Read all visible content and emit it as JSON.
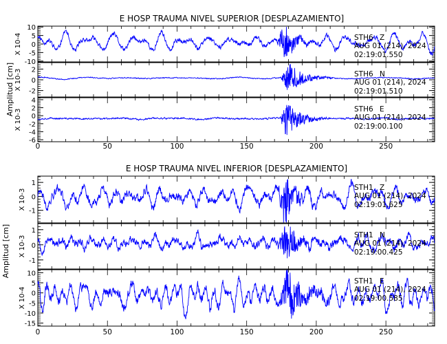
{
  "chart_data": [
    {
      "type": "line",
      "title": "E HOSP TRAUMA NIVEL SUPERIOR [DESPLAZAMIENTO]",
      "ylabel": "Amplitud [cm]",
      "xlim": [
        0,
        285
      ],
      "xticks": [
        "0",
        "50",
        "100",
        "150",
        "200",
        "250"
      ],
      "xtick_values": [
        0,
        50,
        100,
        150,
        200,
        250
      ],
      "color": "#0000ff",
      "panels": [
        {
          "station": "STH6",
          "component": "Z",
          "date": "AUG 01 (214), 2024",
          "time": "02:19:01.550",
          "multiplier": "X 10-4",
          "ylim": [
            -10.5,
            10.5
          ],
          "yticks": [
            "10",
            "5",
            "0",
            "-5",
            "-10"
          ],
          "ytick_values": [
            10,
            5,
            0,
            -5,
            -10
          ],
          "signal": {
            "seed": 11,
            "base": 0.22,
            "eq": 0.9,
            "eq_start": 171,
            "eq_peak": 178,
            "eq_end": 198,
            "slow": 0.55,
            "period": 9,
            "offset": 0.1
          }
        },
        {
          "station": "STH6",
          "component": "N",
          "date": "AUG 01 (214), 2024",
          "time": "02:19:01.510",
          "multiplier": "X 10-3",
          "ylim": [
            -3.2,
            3.2
          ],
          "yticks": [
            "2",
            "0",
            "-2"
          ],
          "ytick_values": [
            2,
            0,
            -2
          ],
          "signal": {
            "seed": 23,
            "base": 0.05,
            "eq": 0.85,
            "eq_start": 174,
            "eq_peak": 180,
            "eq_end": 212,
            "slow": 0.1,
            "period": 28,
            "offset": 0.1
          }
        },
        {
          "station": "STH6",
          "component": "E",
          "date": "AUG 01 (214), 2024",
          "time": "02:19:00.100",
          "multiplier": "X 10-3",
          "ylim": [
            -6.5,
            4.5
          ],
          "yticks": [
            "4",
            "2",
            "0",
            "-2",
            "-4",
            "-6"
          ],
          "ytick_values": [
            4,
            2,
            0,
            -2,
            -4,
            -6
          ],
          "signal": {
            "seed": 37,
            "base": 0.06,
            "eq": 0.8,
            "eq_start": 174,
            "eq_peak": 178,
            "eq_end": 210,
            "slow": 0.06,
            "period": 30,
            "offset": 0.05
          }
        }
      ]
    },
    {
      "type": "line",
      "title": "E HOSP TRAUMA NIVEL INFERIOR [DESPLAZAMIENTO]",
      "ylabel": "Amplitud [cm]",
      "xlim": [
        0,
        285
      ],
      "xticks": [
        "0",
        "50",
        "100",
        "150",
        "200",
        "250"
      ],
      "xtick_values": [
        0,
        50,
        100,
        150,
        200,
        250
      ],
      "color": "#0000ff",
      "panels": [
        {
          "station": "STH1",
          "component": "Z",
          "date": "AUG 01 (214), 2024",
          "time": "02:19:01.625",
          "multiplier": "X 10-3",
          "ylim": [
            -1.9,
            1.45
          ],
          "yticks": [
            "1",
            "0",
            "-1"
          ],
          "ytick_values": [
            1,
            0,
            -1
          ],
          "signal": {
            "seed": 41,
            "base": 0.3,
            "eq": 0.9,
            "eq_start": 172,
            "eq_peak": 178,
            "eq_end": 200,
            "slow": 0.7,
            "period": 8,
            "offset": 0.1
          }
        },
        {
          "station": "STH1",
          "component": "N",
          "date": "AUG 01 (214), 2024",
          "time": "02:19:00.425",
          "multiplier": "X 10-3",
          "ylim": [
            -1.6,
            1.4
          ],
          "yticks": [
            "1",
            "0",
            "-1"
          ],
          "ytick_values": [
            1,
            0,
            -1
          ],
          "signal": {
            "seed": 53,
            "base": 0.3,
            "eq": 0.9,
            "eq_start": 172,
            "eq_peak": 179,
            "eq_end": 204,
            "slow": 0.6,
            "period": 8,
            "offset": 0.15
          }
        },
        {
          "station": "STH1",
          "component": "E",
          "date": "AUG 01 (214), 2024",
          "time": "02:19:00.585",
          "multiplier": "X 10-4",
          "ylim": [
            -16.5,
            11.5
          ],
          "yticks": [
            "10",
            "5",
            "0",
            "-5",
            "-10",
            "-15"
          ],
          "ytick_values": [
            10,
            5,
            0,
            -5,
            -10,
            -15
          ],
          "signal": {
            "seed": 67,
            "base": 0.3,
            "eq": 0.75,
            "eq_start": 172,
            "eq_peak": 180,
            "eq_end": 214,
            "slow": 0.6,
            "period": 9,
            "offset": 0.1
          }
        }
      ]
    }
  ]
}
